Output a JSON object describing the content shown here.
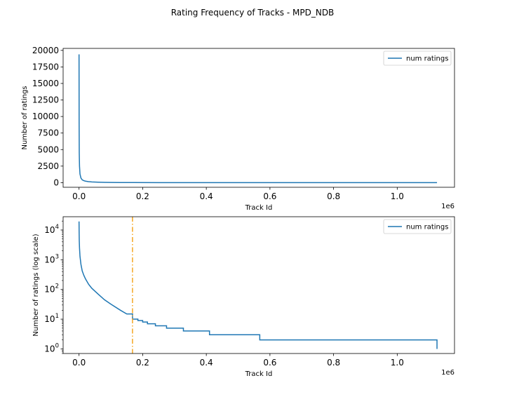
{
  "figure_title": "Rating Frequency of Tracks - MPD_NDB",
  "chart_data": [
    {
      "type": "line",
      "title": "",
      "xlabel": "Track Id",
      "ylabel": "Number of ratings",
      "x_offset_label": "1e6",
      "xlim": [
        -50000,
        1180000
      ],
      "ylim": [
        -700,
        20300
      ],
      "yscale": "linear",
      "xticks": [
        0,
        200000,
        400000,
        600000,
        800000,
        1000000
      ],
      "xtick_labels": [
        "0.0",
        "0.2",
        "0.4",
        "0.6",
        "0.8",
        "1.0"
      ],
      "yticks": [
        0,
        2500,
        5000,
        7500,
        10000,
        12500,
        15000,
        17500,
        20000
      ],
      "ytick_labels": [
        "0",
        "2500",
        "5000",
        "7500",
        "10000",
        "12500",
        "15000",
        "17500",
        "20000"
      ],
      "legend": {
        "position": "top-right",
        "entries": [
          "num ratings"
        ]
      },
      "series": [
        {
          "name": "num ratings",
          "color": "#1f77b4",
          "x": [
            0,
            300,
            700,
            1500,
            3000,
            6000,
            10000,
            15000,
            20000,
            30000,
            40000,
            60000,
            80000,
            100000,
            130000,
            170000,
            250000,
            400000,
            570000,
            800000,
            1000000,
            1125000
          ],
          "y": [
            19400,
            9000,
            4500,
            2500,
            1300,
            700,
            420,
            300,
            230,
            150,
            110,
            70,
            45,
            32,
            20,
            10,
            6,
            3,
            2,
            1,
            1,
            1
          ]
        }
      ]
    },
    {
      "type": "line",
      "title": "",
      "xlabel": "Track Id",
      "ylabel": "Number of ratings (log scale)",
      "x_offset_label": "1e6",
      "xlim": [
        -50000,
        1180000
      ],
      "ylim": [
        0.7,
        28000
      ],
      "yscale": "log",
      "xticks": [
        0,
        200000,
        400000,
        600000,
        800000,
        1000000
      ],
      "xtick_labels": [
        "0.0",
        "0.2",
        "0.4",
        "0.6",
        "0.8",
        "1.0"
      ],
      "yticks": [
        1,
        10,
        100,
        1000,
        10000
      ],
      "ytick_labels": [
        [
          "10",
          "0"
        ],
        [
          "10",
          "1"
        ],
        [
          "10",
          "2"
        ],
        [
          "10",
          "3"
        ],
        [
          "10",
          "4"
        ]
      ],
      "vline": {
        "x": 168000,
        "color": "#f5a623",
        "style": "dashdot"
      },
      "legend": {
        "position": "top-right",
        "entries": [
          "num ratings"
        ]
      },
      "series": [
        {
          "name": "num ratings",
          "color": "#1f77b4",
          "x": [
            0,
            300,
            700,
            1500,
            3000,
            6000,
            10000,
            15000,
            20000,
            30000,
            40000,
            60000,
            80000,
            100000,
            130000,
            150000,
            168000,
            185000,
            200000,
            215000,
            240000,
            275000,
            328000,
            410000,
            568000,
            1125000
          ],
          "y": [
            19400,
            9000,
            4500,
            2500,
            1300,
            700,
            420,
            300,
            230,
            150,
            110,
            70,
            45,
            32,
            20,
            15,
            10,
            9,
            8,
            7,
            6,
            5,
            4,
            3,
            2,
            1
          ]
        }
      ]
    }
  ]
}
